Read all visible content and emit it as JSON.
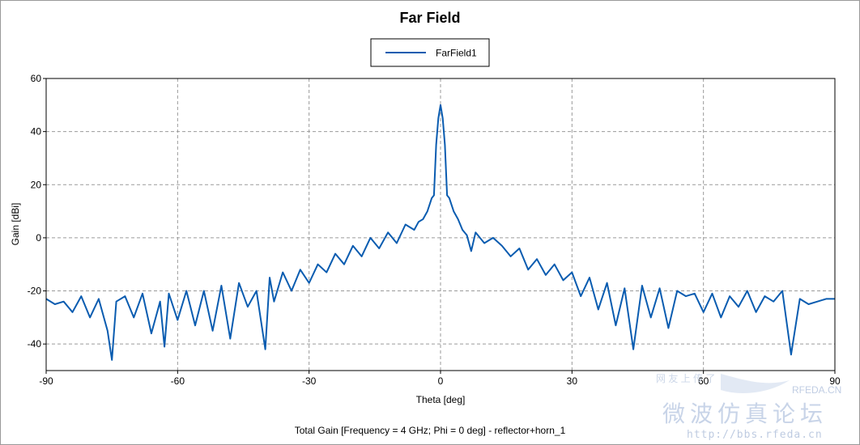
{
  "chart_data": {
    "type": "line",
    "title": "Far Field",
    "xlabel": "Theta [deg]",
    "ylabel": "Gain [dBi]",
    "caption": "Total Gain [Frequency = 4 GHz; Phi = 0 deg] - reflector+horn_1",
    "xlim": [
      -90,
      90
    ],
    "ylim": [
      -50,
      60
    ],
    "xticks": [
      -90,
      -60,
      -30,
      0,
      30,
      60,
      90
    ],
    "yticks": [
      -40,
      -20,
      0,
      20,
      40,
      60
    ],
    "xtick_labels": [
      "-90",
      "-60",
      "-30",
      "0",
      "30",
      "60",
      "90"
    ],
    "ytick_labels": [
      "-40",
      "-20",
      "0",
      "20",
      "40",
      "60"
    ],
    "grid": true,
    "legend_position": "top-center",
    "series": [
      {
        "name": "FarField1",
        "color": "#0a5cb0",
        "x": [
          -90,
          -88,
          -86,
          -84,
          -82,
          -80,
          -78,
          -76,
          -75,
          -74,
          -72,
          -70,
          -68,
          -66,
          -64,
          -63,
          -62,
          -60,
          -58,
          -56,
          -54,
          -52,
          -50,
          -48,
          -46,
          -44,
          -42,
          -40,
          -39,
          -38,
          -36,
          -34,
          -32,
          -30,
          -28,
          -26,
          -24,
          -22,
          -20,
          -18,
          -16,
          -14,
          -12,
          -10,
          -8,
          -6,
          -5,
          -4,
          -3,
          -2,
          -1.5,
          -1,
          -0.5,
          0,
          0.5,
          1,
          1.5,
          2,
          3,
          4,
          5,
          6,
          7,
          8,
          10,
          12,
          14,
          16,
          18,
          20,
          22,
          24,
          26,
          28,
          30,
          32,
          34,
          36,
          38,
          40,
          42,
          44,
          46,
          48,
          50,
          52,
          54,
          56,
          58,
          60,
          62,
          64,
          66,
          68,
          70,
          72,
          74,
          76,
          78,
          80,
          82,
          84,
          86,
          88,
          90
        ],
        "y": [
          -23,
          -25,
          -24,
          -28,
          -22,
          -30,
          -23,
          -35,
          -46,
          -24,
          -22,
          -30,
          -21,
          -36,
          -24,
          -41,
          -21,
          -31,
          -20,
          -33,
          -20,
          -35,
          -18,
          -38,
          -17,
          -26,
          -20,
          -42,
          -15,
          -24,
          -13,
          -20,
          -12,
          -17,
          -10,
          -13,
          -6,
          -10,
          -3,
          -7,
          0,
          -4,
          2,
          -2,
          5,
          3,
          6,
          7,
          10,
          15,
          16,
          35,
          45,
          50,
          45,
          35,
          16,
          15,
          10,
          7,
          3,
          1,
          -5,
          2,
          -2,
          0,
          -3,
          -7,
          -4,
          -12,
          -8,
          -14,
          -10,
          -16,
          -13,
          -22,
          -15,
          -27,
          -17,
          -33,
          -19,
          -42,
          -18,
          -30,
          -19,
          -34,
          -20,
          -22,
          -21,
          -28,
          -21,
          -30,
          -22,
          -26,
          -20,
          -28,
          -22,
          -24,
          -20,
          -44,
          -23,
          -25,
          -24,
          -23,
          -23
        ]
      }
    ]
  },
  "watermark": {
    "line1": "网 友 上 传 了",
    "line2": "RFEDA.CN",
    "line3": "微波仿真论坛",
    "line4": "http://bbs.rfeda.cn"
  }
}
